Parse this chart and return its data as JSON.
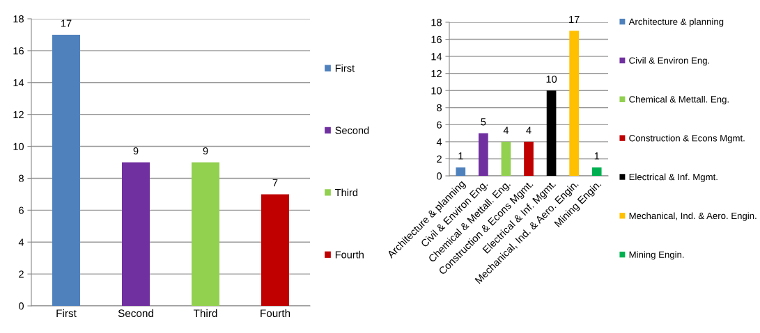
{
  "chart_data": [
    {
      "type": "bar",
      "categories": [
        "First",
        "Second",
        "Third",
        "Fourth"
      ],
      "series": [
        {
          "name": "First",
          "color": "#4f81bd",
          "values": [
            17,
            null,
            null,
            null
          ]
        },
        {
          "name": "Second",
          "color": "#7030a0",
          "values": [
            null,
            9,
            null,
            null
          ]
        },
        {
          "name": "Third",
          "color": "#92d050",
          "values": [
            null,
            null,
            9,
            null
          ]
        },
        {
          "name": "Fourth",
          "color": "#c00000",
          "values": [
            null,
            null,
            null,
            7
          ]
        }
      ],
      "ylim": [
        0,
        18
      ],
      "yticks": [
        0,
        2,
        4,
        6,
        8,
        10,
        12,
        14,
        16,
        18
      ],
      "grid": "y",
      "legend": "right",
      "data_labels": true
    },
    {
      "type": "bar",
      "categories": [
        "Architecture & planning",
        "Civil & Environ Eng.",
        "Chemical & Mettall. Eng.",
        "Construction & Econs Mgmt.",
        "Electrical & Inf. Mgmt.",
        "Mechanical, Ind. & Aero. Engin.",
        "Mining Engin."
      ],
      "series": [
        {
          "name": "Architecture & planning",
          "color": "#4f81bd",
          "values": [
            1,
            null,
            null,
            null,
            null,
            null,
            null
          ]
        },
        {
          "name": "Civil & Environ Eng.",
          "color": "#7030a0",
          "values": [
            null,
            5,
            null,
            null,
            null,
            null,
            null
          ]
        },
        {
          "name": "Chemical & Mettall. Eng.",
          "color": "#92d050",
          "values": [
            null,
            null,
            4,
            null,
            null,
            null,
            null
          ]
        },
        {
          "name": "Construction & Econs Mgmt.",
          "color": "#c00000",
          "values": [
            null,
            null,
            null,
            4,
            null,
            null,
            null
          ]
        },
        {
          "name": "Electrical & Inf. Mgmt.",
          "color": "#000000",
          "values": [
            null,
            null,
            null,
            null,
            10,
            null,
            null
          ]
        },
        {
          "name": "Mechanical, Ind. & Aero. Engin.",
          "color": "#ffc000",
          "values": [
            null,
            null,
            null,
            null,
            null,
            17,
            null
          ]
        },
        {
          "name": "Mining Engin.",
          "color": "#00b050",
          "values": [
            null,
            null,
            null,
            null,
            null,
            null,
            1
          ]
        }
      ],
      "ylim": [
        0,
        18
      ],
      "yticks": [
        0,
        2,
        4,
        6,
        8,
        10,
        12,
        14,
        16,
        18
      ],
      "grid": "y",
      "legend": "right",
      "data_labels": true
    }
  ]
}
